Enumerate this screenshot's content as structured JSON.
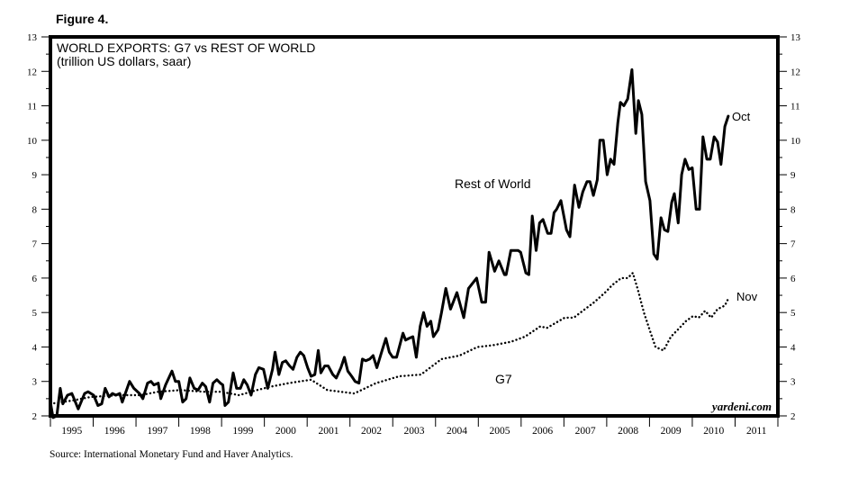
{
  "figure_label": "Figure 4.",
  "source": "Source: International Monetary Fund and Haver Analytics.",
  "watermark": "yardeni.com",
  "chart_data": {
    "type": "line",
    "title": "WORLD EXPORTS: G7 vs REST OF WORLD",
    "subtitle": "(trillion US dollars, saar)",
    "xlabel": "",
    "ylabel": "",
    "xlim": [
      1995,
      2012
    ],
    "ylim": [
      2,
      13
    ],
    "y_ticks": [
      2,
      3,
      4,
      5,
      6,
      7,
      8,
      9,
      10,
      11,
      12,
      13
    ],
    "x_tick_labels": [
      "1995",
      "1996",
      "1997",
      "1998",
      "1999",
      "2000",
      "2001",
      "2002",
      "2003",
      "2004",
      "2005",
      "2006",
      "2007",
      "2008",
      "2009",
      "2010",
      "2011"
    ],
    "grid": false,
    "y_axis_both_sides": true,
    "series": [
      {
        "name": "Rest of World",
        "style": "solid",
        "color": "#000000",
        "end_label": "Oct",
        "points": [
          [
            1995.0,
            2.4
          ],
          [
            1995.06,
            1.95
          ],
          [
            1995.15,
            2.0
          ],
          [
            1995.23,
            2.8
          ],
          [
            1995.29,
            2.35
          ],
          [
            1995.4,
            2.6
          ],
          [
            1995.5,
            2.65
          ],
          [
            1995.65,
            2.2
          ],
          [
            1995.8,
            2.65
          ],
          [
            1995.88,
            2.7
          ],
          [
            1996.01,
            2.6
          ],
          [
            1996.11,
            2.3
          ],
          [
            1996.2,
            2.35
          ],
          [
            1996.28,
            2.8
          ],
          [
            1996.37,
            2.55
          ],
          [
            1996.45,
            2.65
          ],
          [
            1996.53,
            2.6
          ],
          [
            1996.62,
            2.65
          ],
          [
            1996.68,
            2.4
          ],
          [
            1996.85,
            3.0
          ],
          [
            1996.95,
            2.8
          ],
          [
            1997.08,
            2.65
          ],
          [
            1997.16,
            2.5
          ],
          [
            1997.27,
            2.95
          ],
          [
            1997.35,
            3.0
          ],
          [
            1997.42,
            2.9
          ],
          [
            1997.52,
            2.95
          ],
          [
            1997.58,
            2.5
          ],
          [
            1997.69,
            2.9
          ],
          [
            1997.84,
            3.3
          ],
          [
            1997.92,
            3.0
          ],
          [
            1998.0,
            3.0
          ],
          [
            1998.09,
            2.4
          ],
          [
            1998.17,
            2.5
          ],
          [
            1998.26,
            3.1
          ],
          [
            1998.36,
            2.8
          ],
          [
            1998.45,
            2.75
          ],
          [
            1998.55,
            2.95
          ],
          [
            1998.63,
            2.85
          ],
          [
            1998.72,
            2.4
          ],
          [
            1998.8,
            2.95
          ],
          [
            1998.89,
            3.05
          ],
          [
            1998.97,
            2.95
          ],
          [
            1999.03,
            2.9
          ],
          [
            1999.08,
            2.3
          ],
          [
            1999.16,
            2.4
          ],
          [
            1999.27,
            3.25
          ],
          [
            1999.35,
            2.8
          ],
          [
            1999.44,
            2.8
          ],
          [
            1999.52,
            3.05
          ],
          [
            1999.6,
            2.9
          ],
          [
            1999.69,
            2.6
          ],
          [
            1999.79,
            3.2
          ],
          [
            1999.87,
            3.4
          ],
          [
            1999.98,
            3.35
          ],
          [
            2000.08,
            2.8
          ],
          [
            2000.19,
            3.35
          ],
          [
            2000.25,
            3.85
          ],
          [
            2000.34,
            3.2
          ],
          [
            2000.42,
            3.55
          ],
          [
            2000.5,
            3.6
          ],
          [
            2000.59,
            3.45
          ],
          [
            2000.67,
            3.35
          ],
          [
            2000.76,
            3.7
          ],
          [
            2000.84,
            3.85
          ],
          [
            2000.92,
            3.75
          ],
          [
            2001.01,
            3.4
          ],
          [
            2001.09,
            3.15
          ],
          [
            2001.18,
            3.2
          ],
          [
            2001.26,
            3.9
          ],
          [
            2001.32,
            3.25
          ],
          [
            2001.41,
            3.45
          ],
          [
            2001.49,
            3.45
          ],
          [
            2001.6,
            3.2
          ],
          [
            2001.68,
            3.1
          ],
          [
            2001.79,
            3.4
          ],
          [
            2001.87,
            3.7
          ],
          [
            2001.95,
            3.3
          ],
          [
            2002.04,
            3.15
          ],
          [
            2002.12,
            3.0
          ],
          [
            2002.21,
            2.95
          ],
          [
            2002.29,
            3.65
          ],
          [
            2002.37,
            3.6
          ],
          [
            2002.46,
            3.65
          ],
          [
            2002.54,
            3.75
          ],
          [
            2002.63,
            3.4
          ],
          [
            2002.75,
            3.9
          ],
          [
            2002.84,
            4.25
          ],
          [
            2002.92,
            3.85
          ],
          [
            2003.0,
            3.7
          ],
          [
            2003.09,
            3.7
          ],
          [
            2003.24,
            4.4
          ],
          [
            2003.3,
            4.2
          ],
          [
            2003.38,
            4.25
          ],
          [
            2003.47,
            4.3
          ],
          [
            2003.55,
            3.7
          ],
          [
            2003.64,
            4.6
          ],
          [
            2003.72,
            5.0
          ],
          [
            2003.8,
            4.6
          ],
          [
            2003.89,
            4.75
          ],
          [
            2003.95,
            4.3
          ],
          [
            2004.06,
            4.5
          ],
          [
            2004.14,
            5.0
          ],
          [
            2004.24,
            5.7
          ],
          [
            2004.35,
            5.1
          ],
          [
            2004.5,
            5.58
          ],
          [
            2004.66,
            4.85
          ],
          [
            2004.77,
            5.7
          ],
          [
            2004.96,
            6.0
          ],
          [
            2005.08,
            5.3
          ],
          [
            2005.17,
            5.3
          ],
          [
            2005.25,
            6.75
          ],
          [
            2005.38,
            6.2
          ],
          [
            2005.48,
            6.5
          ],
          [
            2005.61,
            6.1
          ],
          [
            2005.65,
            6.1
          ],
          [
            2005.76,
            6.8
          ],
          [
            2005.93,
            6.8
          ],
          [
            2005.99,
            6.75
          ],
          [
            2006.11,
            6.15
          ],
          [
            2006.18,
            6.1
          ],
          [
            2006.26,
            7.8
          ],
          [
            2006.35,
            6.8
          ],
          [
            2006.43,
            7.6
          ],
          [
            2006.51,
            7.7
          ],
          [
            2006.62,
            7.3
          ],
          [
            2006.7,
            7.3
          ],
          [
            2006.77,
            7.9
          ],
          [
            2006.83,
            8.0
          ],
          [
            2006.93,
            8.25
          ],
          [
            2007.06,
            7.4
          ],
          [
            2007.14,
            7.2
          ],
          [
            2007.25,
            8.7
          ],
          [
            2007.35,
            8.05
          ],
          [
            2007.44,
            8.5
          ],
          [
            2007.54,
            8.8
          ],
          [
            2007.61,
            8.8
          ],
          [
            2007.69,
            8.4
          ],
          [
            2007.78,
            8.85
          ],
          [
            2007.84,
            10.0
          ],
          [
            2007.92,
            10.0
          ],
          [
            2008.01,
            9.0
          ],
          [
            2008.09,
            9.45
          ],
          [
            2008.17,
            9.3
          ],
          [
            2008.26,
            10.5
          ],
          [
            2008.32,
            11.1
          ],
          [
            2008.4,
            11.0
          ],
          [
            2008.49,
            11.2
          ],
          [
            2008.59,
            12.05
          ],
          [
            2008.68,
            10.2
          ],
          [
            2008.74,
            11.15
          ],
          [
            2008.82,
            10.75
          ],
          [
            2008.91,
            8.8
          ],
          [
            2009.01,
            8.25
          ],
          [
            2009.1,
            6.7
          ],
          [
            2009.18,
            6.55
          ],
          [
            2009.27,
            7.75
          ],
          [
            2009.35,
            7.4
          ],
          [
            2009.43,
            7.35
          ],
          [
            2009.52,
            8.2
          ],
          [
            2009.58,
            8.45
          ],
          [
            2009.67,
            7.6
          ],
          [
            2009.75,
            9.0
          ],
          [
            2009.83,
            9.45
          ],
          [
            2009.92,
            9.15
          ],
          [
            2010.0,
            9.2
          ],
          [
            2010.09,
            8.0
          ],
          [
            2010.17,
            8.0
          ],
          [
            2010.25,
            10.1
          ],
          [
            2010.34,
            9.45
          ],
          [
            2010.42,
            9.45
          ],
          [
            2010.51,
            10.1
          ],
          [
            2010.59,
            9.95
          ],
          [
            2010.67,
            9.3
          ],
          [
            2010.76,
            10.4
          ],
          [
            2010.84,
            10.7
          ]
        ]
      },
      {
        "name": "G7",
        "style": "dotted",
        "color": "#000000",
        "end_label": "Nov",
        "points": [
          [
            1995.0,
            2.35
          ],
          [
            1995.53,
            2.45
          ],
          [
            1995.95,
            2.55
          ],
          [
            1996.58,
            2.6
          ],
          [
            1997.1,
            2.6
          ],
          [
            1997.52,
            2.7
          ],
          [
            1998.05,
            2.75
          ],
          [
            1998.57,
            2.7
          ],
          [
            1998.99,
            2.7
          ],
          [
            1999.41,
            2.6
          ],
          [
            1999.83,
            2.75
          ],
          [
            2000.15,
            2.85
          ],
          [
            2000.57,
            2.95
          ],
          [
            2001.09,
            3.05
          ],
          [
            2001.47,
            2.75
          ],
          [
            2002.1,
            2.65
          ],
          [
            2002.61,
            2.95
          ],
          [
            2003.15,
            3.15
          ],
          [
            2003.66,
            3.2
          ],
          [
            2004.14,
            3.65
          ],
          [
            2004.56,
            3.75
          ],
          [
            2004.98,
            4.0
          ],
          [
            2005.34,
            4.05
          ],
          [
            2005.76,
            4.15
          ],
          [
            2006.09,
            4.3
          ],
          [
            2006.45,
            4.6
          ],
          [
            2006.6,
            4.55
          ],
          [
            2007.02,
            4.85
          ],
          [
            2007.23,
            4.85
          ],
          [
            2007.44,
            5.05
          ],
          [
            2007.71,
            5.3
          ],
          [
            2007.98,
            5.6
          ],
          [
            2008.13,
            5.8
          ],
          [
            2008.34,
            6.0
          ],
          [
            2008.49,
            6.0
          ],
          [
            2008.61,
            6.15
          ],
          [
            2008.72,
            5.7
          ],
          [
            2008.87,
            5.0
          ],
          [
            2009.03,
            4.4
          ],
          [
            2009.14,
            4.0
          ],
          [
            2009.33,
            3.9
          ],
          [
            2009.5,
            4.3
          ],
          [
            2009.66,
            4.5
          ],
          [
            2009.85,
            4.75
          ],
          [
            2010.02,
            4.9
          ],
          [
            2010.15,
            4.85
          ],
          [
            2010.3,
            5.05
          ],
          [
            2010.44,
            4.85
          ],
          [
            2010.59,
            5.1
          ],
          [
            2010.76,
            5.2
          ],
          [
            2010.86,
            5.45
          ]
        ]
      }
    ]
  }
}
